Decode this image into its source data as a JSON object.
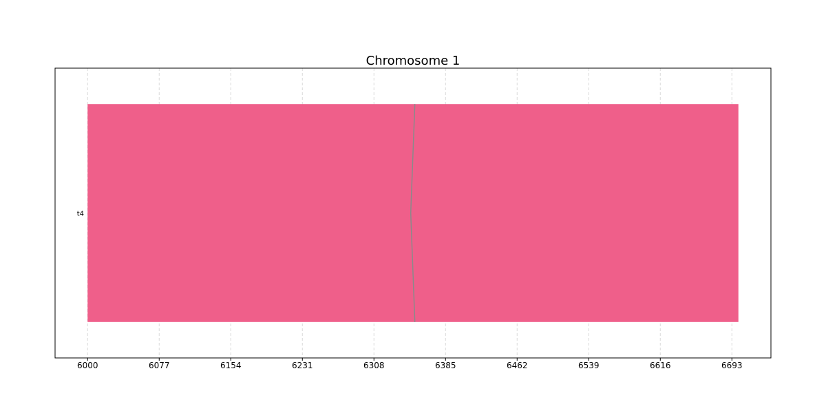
{
  "chart_data": {
    "type": "bar",
    "title": "Chromosome 1",
    "xlabel": "",
    "ylabel": "",
    "xlim": [
      5965,
      6735
    ],
    "x_ticks": [
      6000,
      6077,
      6154,
      6231,
      6308,
      6385,
      6462,
      6539,
      6616,
      6693
    ],
    "grid": "vertical-dashed",
    "categories": [
      "t4"
    ],
    "segments": [
      {
        "category": "t4",
        "start": 6000,
        "end": 6700,
        "color": "#ef5f8a",
        "break_at": 6352
      }
    ]
  }
}
